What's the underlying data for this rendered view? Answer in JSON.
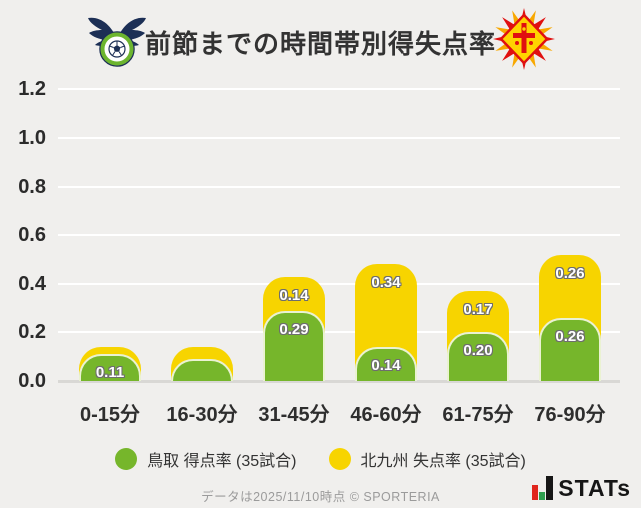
{
  "header": {
    "title": "前節までの時間帯別得失点率",
    "left_logo": "gainare-tottori-club-emblem",
    "right_logo": "giravanz-kitakyushu-club-emblem"
  },
  "chart_data": {
    "type": "bar",
    "stacked": true,
    "title": "前節までの時間帯別得失点率",
    "categories": [
      "0-15分",
      "16-30分",
      "31-45分",
      "46-60分",
      "61-75分",
      "76-90分"
    ],
    "series": [
      {
        "name": "鳥取 得点率 (35試合)",
        "color": "#76b62b",
        "values": [
          0.11,
          0.09,
          0.29,
          0.14,
          0.2,
          0.26
        ],
        "labels": [
          "0.11",
          null,
          "0.29",
          "0.14",
          "0.20",
          "0.26"
        ]
      },
      {
        "name": "北九州 失点率 (35試合)",
        "color": "#f7d400",
        "values": [
          0.03,
          0.05,
          0.14,
          0.34,
          0.17,
          0.26
        ],
        "labels": [
          null,
          null,
          "0.14",
          "0.34",
          "0.17",
          "0.26"
        ]
      }
    ],
    "unlabeled_segment_values_estimated_from_pixels": true,
    "y_ticks": [
      "0.0",
      "0.2",
      "0.4",
      "0.6",
      "0.8",
      "1.0",
      "1.2"
    ],
    "ylim": [
      0,
      1.2
    ],
    "grid": true,
    "legend_position": "bottom"
  },
  "legend": {
    "items": [
      {
        "label": "鳥取 得点率 (35試合)",
        "color": "#76b62b"
      },
      {
        "label": "北九州 失点率 (35試合)",
        "color": "#f7d400"
      }
    ]
  },
  "footer": {
    "note": "データは2025/11/10時点  © SPORTERIA",
    "brand": "STATs"
  },
  "colors": {
    "background": "#f0efed",
    "green_bar": "#76b62b",
    "yellow_bar": "#f7d400",
    "gridline": "#ffffff",
    "baseline": "#d9d8d5",
    "title_text": "#333333"
  }
}
